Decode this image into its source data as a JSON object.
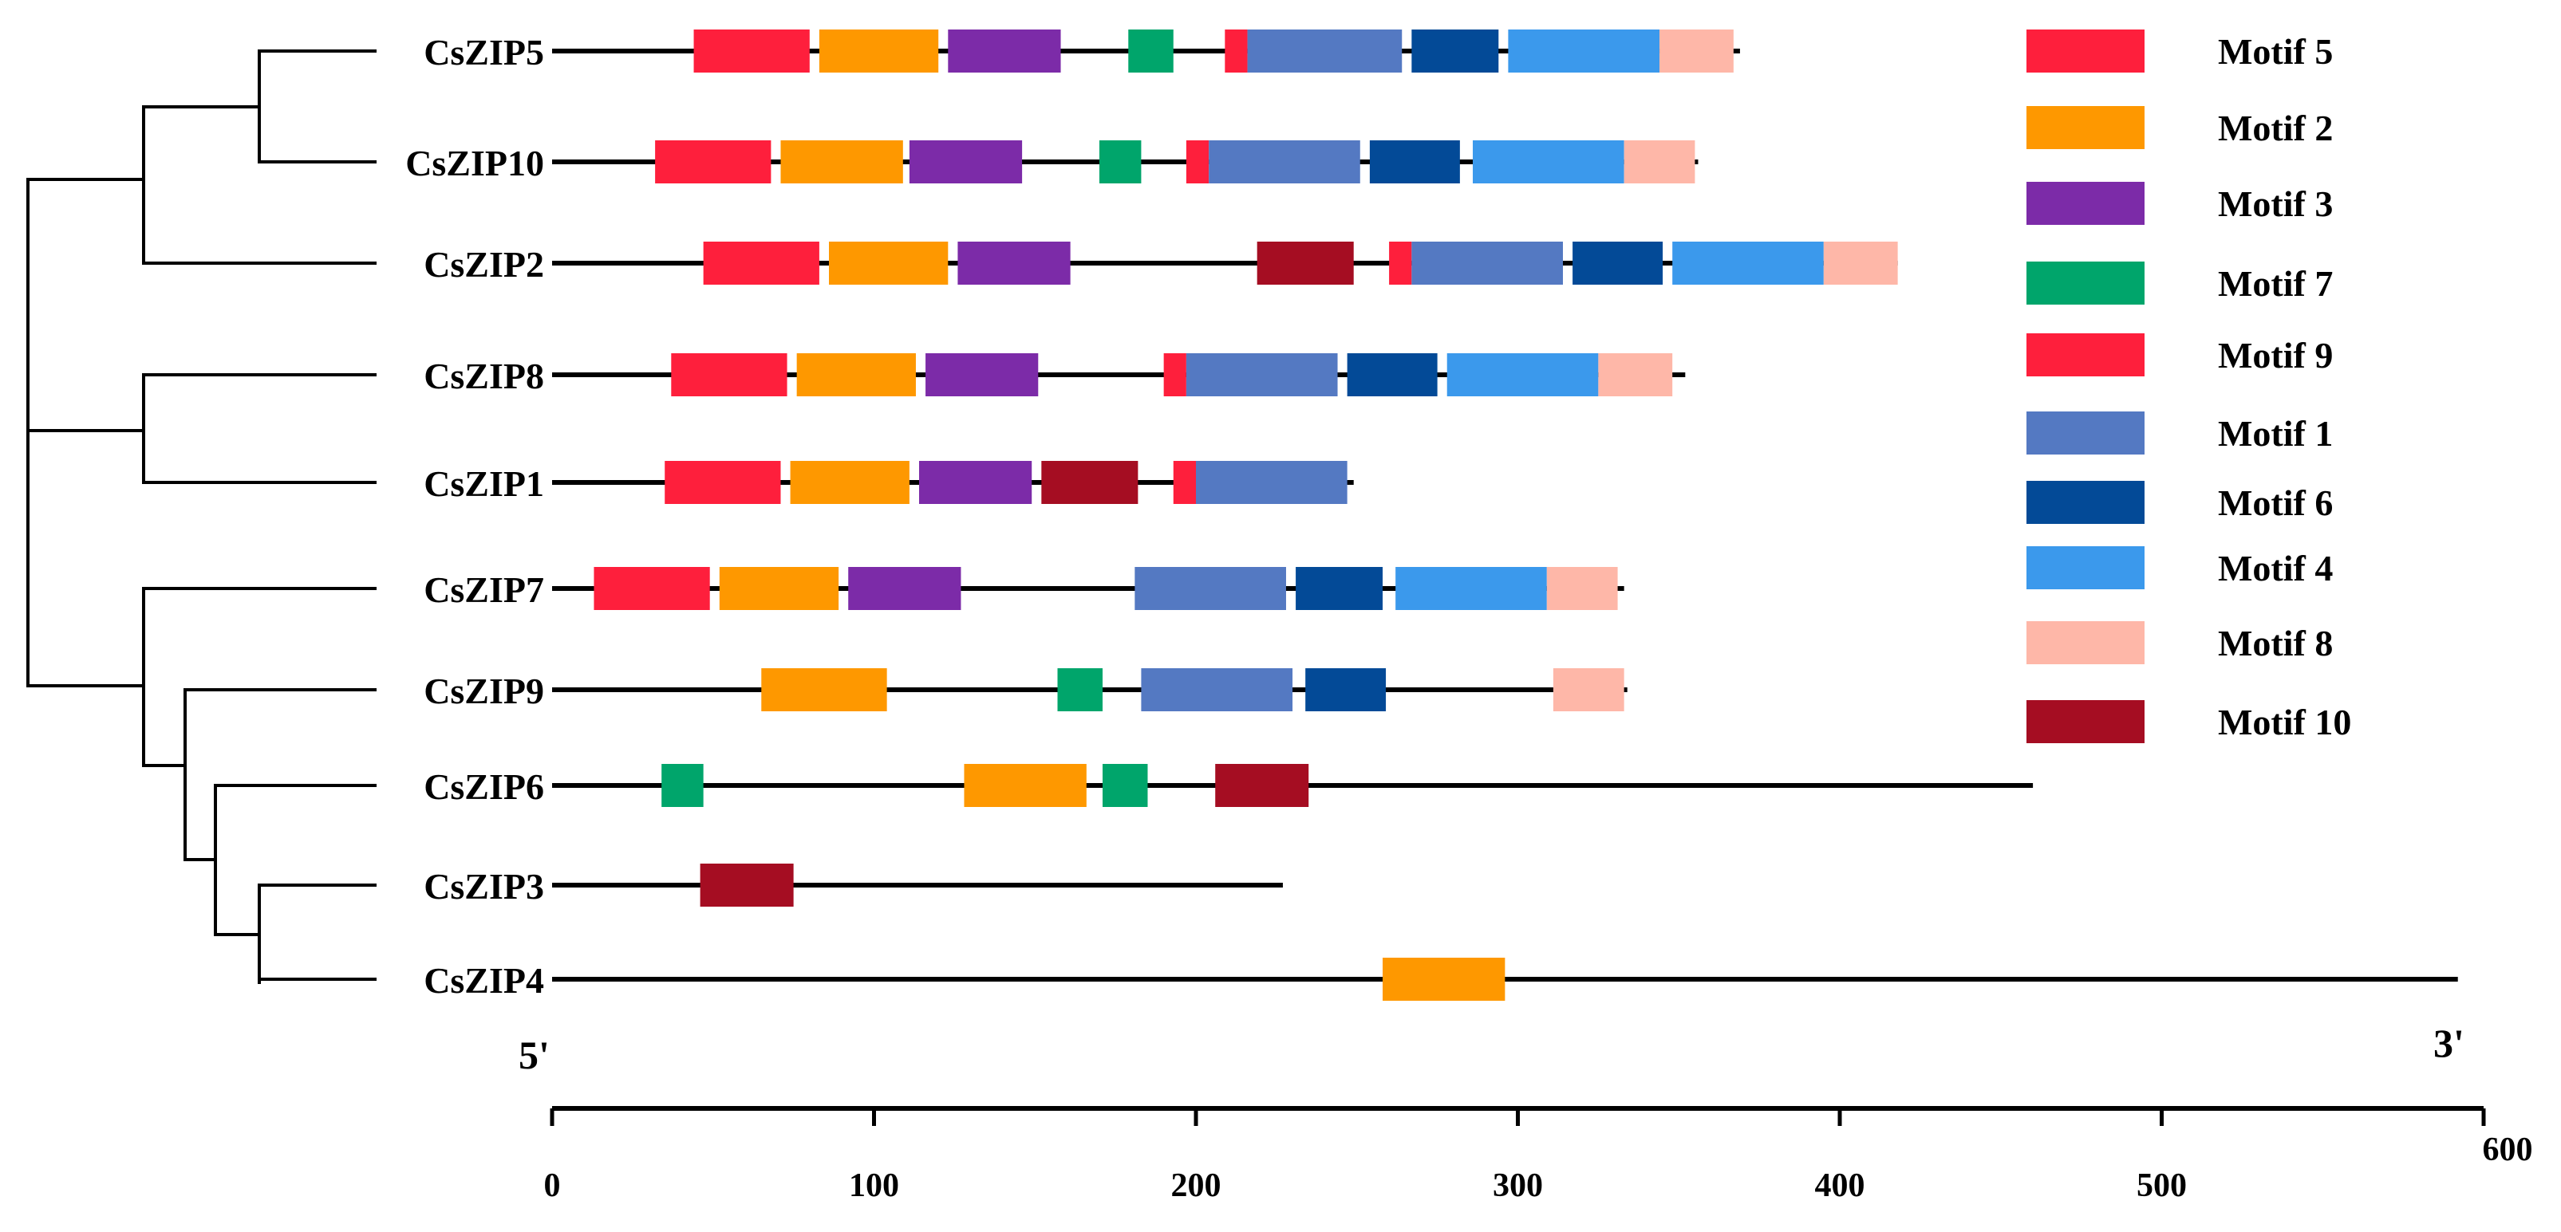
{
  "diagram": {
    "sequence_length_max": 600,
    "axis": {
      "ticks": [
        "0",
        "100",
        "200",
        "300",
        "400",
        "500",
        "600"
      ],
      "end_label_left": "5'",
      "end_label_right": "3'"
    },
    "motifs": [
      {
        "name": "Motif 5",
        "color": "#fe1f3c"
      },
      {
        "name": "Motif 2",
        "color": "#fe9800"
      },
      {
        "name": "Motif 3",
        "color": "#7c2ba8"
      },
      {
        "name": "Motif 7",
        "color": "#00a56b"
      },
      {
        "name": "Motif 9",
        "color": "#fe1f3c"
      },
      {
        "name": "Motif 1",
        "color": "#5479c2"
      },
      {
        "name": "Motif 6",
        "color": "#034a97"
      },
      {
        "name": "Motif 4",
        "color": "#3b99ec"
      },
      {
        "name": "Motif 8",
        "color": "#feb7a8"
      },
      {
        "name": "Motif 10",
        "color": "#a50d22"
      }
    ],
    "genes": [
      {
        "name": "CsZIP5",
        "length": 369,
        "blocks": [
          {
            "motif": "Motif 5",
            "start": 44,
            "end": 80
          },
          {
            "motif": "Motif 2",
            "start": 83,
            "end": 120
          },
          {
            "motif": "Motif 3",
            "start": 123,
            "end": 158
          },
          {
            "motif": "Motif 7",
            "start": 179,
            "end": 193
          },
          {
            "motif": "Motif 9",
            "start": 209,
            "end": 216
          },
          {
            "motif": "Motif 1",
            "start": 216,
            "end": 264
          },
          {
            "motif": "Motif 6",
            "start": 267,
            "end": 294
          },
          {
            "motif": "Motif 4",
            "start": 297,
            "end": 344
          },
          {
            "motif": "Motif 8",
            "start": 344,
            "end": 367
          }
        ]
      },
      {
        "name": "CsZIP10",
        "length": 356,
        "blocks": [
          {
            "motif": "Motif 5",
            "start": 32,
            "end": 68
          },
          {
            "motif": "Motif 2",
            "start": 71,
            "end": 109
          },
          {
            "motif": "Motif 3",
            "start": 111,
            "end": 146
          },
          {
            "motif": "Motif 7",
            "start": 170,
            "end": 183
          },
          {
            "motif": "Motif 9",
            "start": 197,
            "end": 204
          },
          {
            "motif": "Motif 1",
            "start": 204,
            "end": 251
          },
          {
            "motif": "Motif 6",
            "start": 254,
            "end": 282
          },
          {
            "motif": "Motif 4",
            "start": 286,
            "end": 333
          },
          {
            "motif": "Motif 8",
            "start": 333,
            "end": 355
          }
        ]
      },
      {
        "name": "CsZIP2",
        "length": 418,
        "blocks": [
          {
            "motif": "Motif 5",
            "start": 47,
            "end": 83
          },
          {
            "motif": "Motif 2",
            "start": 86,
            "end": 123
          },
          {
            "motif": "Motif 3",
            "start": 126,
            "end": 161
          },
          {
            "motif": "Motif 10",
            "start": 219,
            "end": 249
          },
          {
            "motif": "Motif 9",
            "start": 260,
            "end": 267
          },
          {
            "motif": "Motif 1",
            "start": 267,
            "end": 314
          },
          {
            "motif": "Motif 6",
            "start": 317,
            "end": 345
          },
          {
            "motif": "Motif 4",
            "start": 348,
            "end": 395
          },
          {
            "motif": "Motif 8",
            "start": 395,
            "end": 418
          }
        ]
      },
      {
        "name": "CsZIP8",
        "length": 352,
        "blocks": [
          {
            "motif": "Motif 5",
            "start": 37,
            "end": 73
          },
          {
            "motif": "Motif 2",
            "start": 76,
            "end": 113
          },
          {
            "motif": "Motif 3",
            "start": 116,
            "end": 151
          },
          {
            "motif": "Motif 9",
            "start": 190,
            "end": 197
          },
          {
            "motif": "Motif 1",
            "start": 197,
            "end": 244
          },
          {
            "motif": "Motif 6",
            "start": 247,
            "end": 275
          },
          {
            "motif": "Motif 4",
            "start": 278,
            "end": 325
          },
          {
            "motif": "Motif 8",
            "start": 325,
            "end": 348
          }
        ]
      },
      {
        "name": "CsZIP1",
        "length": 249,
        "blocks": [
          {
            "motif": "Motif 5",
            "start": 35,
            "end": 71
          },
          {
            "motif": "Motif 2",
            "start": 74,
            "end": 111
          },
          {
            "motif": "Motif 3",
            "start": 114,
            "end": 149
          },
          {
            "motif": "Motif 10",
            "start": 152,
            "end": 182
          },
          {
            "motif": "Motif 9",
            "start": 193,
            "end": 200
          },
          {
            "motif": "Motif 1",
            "start": 200,
            "end": 247
          }
        ]
      },
      {
        "name": "CsZIP7",
        "length": 333,
        "blocks": [
          {
            "motif": "Motif 5",
            "start": 13,
            "end": 49
          },
          {
            "motif": "Motif 2",
            "start": 52,
            "end": 89
          },
          {
            "motif": "Motif 3",
            "start": 92,
            "end": 127
          },
          {
            "motif": "Motif 1",
            "start": 181,
            "end": 228
          },
          {
            "motif": "Motif 6",
            "start": 231,
            "end": 258
          },
          {
            "motif": "Motif 4",
            "start": 262,
            "end": 309
          },
          {
            "motif": "Motif 8",
            "start": 309,
            "end": 331
          }
        ]
      },
      {
        "name": "CsZIP9",
        "length": 334,
        "blocks": [
          {
            "motif": "Motif 2",
            "start": 65,
            "end": 104
          },
          {
            "motif": "Motif 7",
            "start": 157,
            "end": 171
          },
          {
            "motif": "Motif 1",
            "start": 183,
            "end": 230
          },
          {
            "motif": "Motif 6",
            "start": 234,
            "end": 259
          },
          {
            "motif": "Motif 8",
            "start": 311,
            "end": 333
          }
        ]
      },
      {
        "name": "CsZIP6",
        "length": 460,
        "blocks": [
          {
            "motif": "Motif 7",
            "start": 34,
            "end": 47
          },
          {
            "motif": "Motif 2",
            "start": 128,
            "end": 166
          },
          {
            "motif": "Motif 7",
            "start": 171,
            "end": 185
          },
          {
            "motif": "Motif 10",
            "start": 206,
            "end": 235
          }
        ]
      },
      {
        "name": "CsZIP3",
        "length": 227,
        "blocks": [
          {
            "motif": "Motif 10",
            "start": 46,
            "end": 75
          }
        ]
      },
      {
        "name": "CsZIP4",
        "length": 592,
        "blocks": [
          {
            "motif": "Motif 2",
            "start": 258,
            "end": 296
          }
        ]
      }
    ]
  }
}
